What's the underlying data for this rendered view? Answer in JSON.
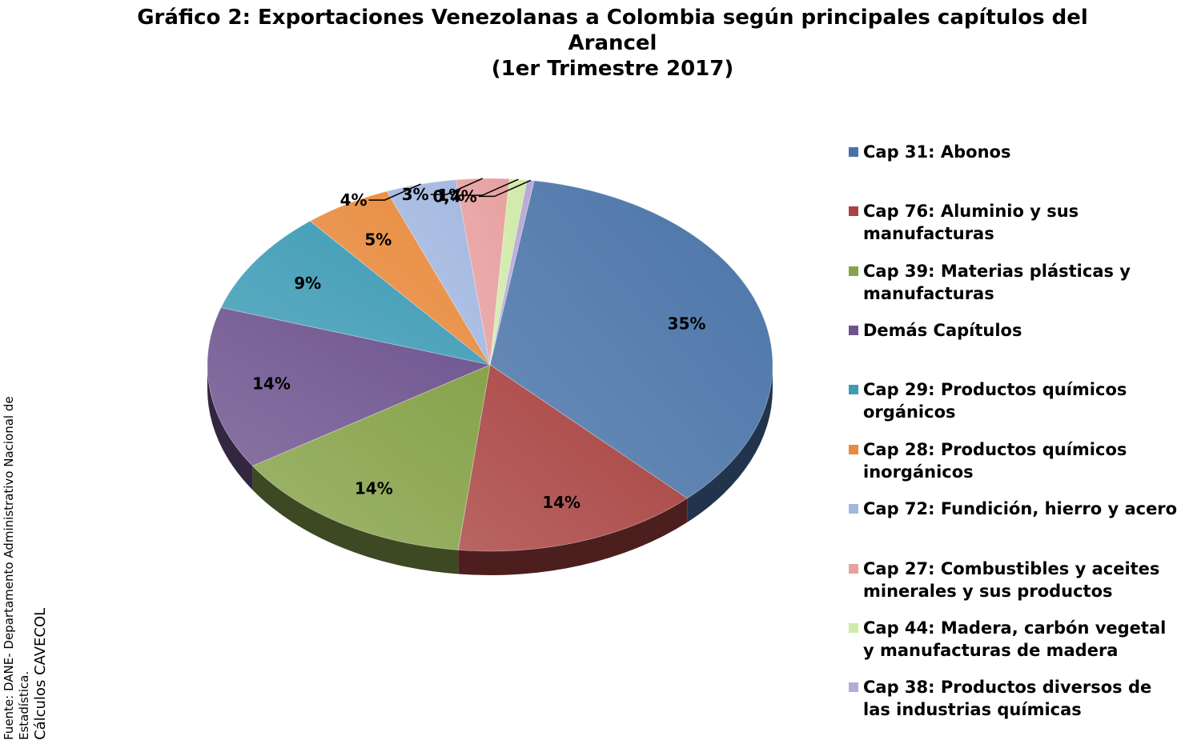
{
  "title_lines": [
    "Gráfico 2: Exportaciones Venezolanas a Colombia según principales capítulos del",
    "Arancel",
    "(1er Trimestre 2017)"
  ],
  "source_lines": [
    "Fuente: DANE- Departamento Administrativo Nacional de",
    "Estadística.",
    "Cálculos CAVECOL"
  ],
  "chart_data": {
    "type": "pie",
    "title": "Gráfico 2: Exportaciones Venezolanas a Colombia según principales capítulos del Arancel (1er Trimestre 2017)",
    "unit": "%",
    "legend_position": "right",
    "slices": [
      {
        "label": "Cap 31: Abonos",
        "value": 35,
        "display": "35%",
        "color": "#4a74a8"
      },
      {
        "label": "Cap 76: Aluminio y sus manufacturas",
        "value": 14,
        "display": "14%",
        "color": "#a84341"
      },
      {
        "label": "Cap 39: Materias plásticas y manufacturas",
        "value": 14,
        "display": "14%",
        "color": "#87a34b"
      },
      {
        "label": "Demás Capítulos",
        "value": 14,
        "display": "14%",
        "color": "#6e548f"
      },
      {
        "label": "Cap 29: Productos químicos orgánicos",
        "value": 9,
        "display": "9%",
        "color": "#3d9bb5"
      },
      {
        "label": "Cap 28: Productos químicos inorgánicos",
        "value": 5,
        "display": "5%",
        "color": "#e88b3e"
      },
      {
        "label": "Cap 72: Fundición, hierro y acero",
        "value": 4,
        "display": "4%",
        "color": "#a3b8e0"
      },
      {
        "label": "Cap 27: Combustibles y aceites minerales y sus productos",
        "value": 3,
        "display": "3%",
        "color": "#e8a0a0"
      },
      {
        "label": "Cap 44: Madera, carbón vegetal y manufacturas de madera",
        "value": 1,
        "display": "1%",
        "color": "#d0eaa8"
      },
      {
        "label": "Cap 38: Productos diversos de las industrias químicas",
        "value": 0.4,
        "display": "0,4%",
        "color": "#b7aad6"
      }
    ]
  }
}
